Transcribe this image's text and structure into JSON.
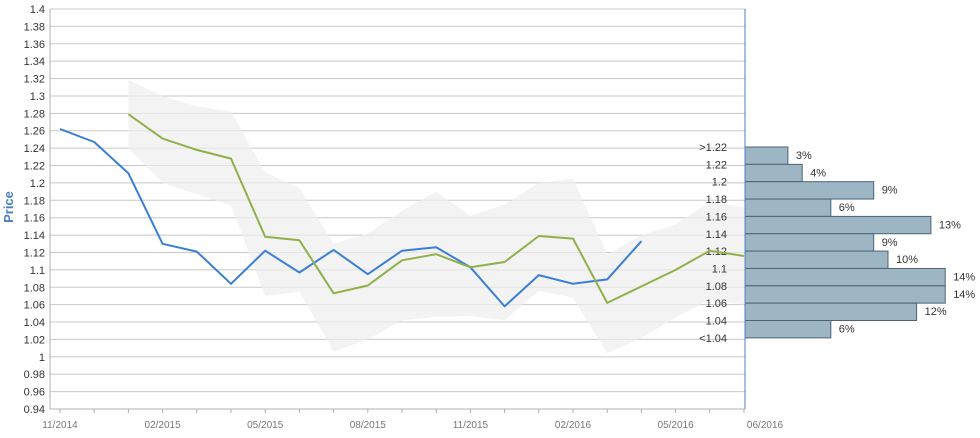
{
  "chart_data": {
    "type": "line",
    "ylabel": "Price",
    "ylim": [
      0.94,
      1.4
    ],
    "yticks": [
      "1.4",
      "1.38",
      "1.36",
      "1.34",
      "1.32",
      "1.3",
      "1.28",
      "1.26",
      "1.24",
      "1.22",
      "1.2",
      "1.18",
      "1.16",
      "1.14",
      "1.12",
      "1.1",
      "1.08",
      "1.06",
      "1.04",
      "1.02",
      "1",
      "0.98",
      "0.96",
      "0.94"
    ],
    "xticks": [
      "11/2014",
      "02/2015",
      "05/2015",
      "08/2015",
      "11/2015",
      "02/2016",
      "05/2016",
      "06/2016"
    ],
    "x_months": [
      "11/2014",
      "12/2014",
      "01/2015",
      "02/2015",
      "03/2015",
      "04/2015",
      "05/2015",
      "06/2015",
      "07/2015",
      "08/2015",
      "09/2015",
      "10/2015",
      "11/2015",
      "12/2015",
      "01/2016",
      "02/2016",
      "03/2016",
      "04/2016",
      "05/2016",
      "06/2016",
      "07/2016"
    ],
    "grid": true,
    "series": [
      {
        "color": "#3a7fd5",
        "values": [
          1.262,
          1.247,
          1.211,
          1.13,
          1.121,
          1.084,
          1.122,
          1.097,
          1.123,
          1.095,
          1.122,
          1.126,
          1.103,
          1.058,
          1.094,
          1.084,
          1.089,
          1.133,
          null,
          null,
          null
        ]
      },
      {
        "color": "#8fb04a",
        "values": [
          null,
          null,
          1.279,
          1.251,
          1.238,
          1.228,
          1.138,
          1.134,
          1.073,
          1.082,
          1.111,
          1.118,
          1.103,
          1.109,
          1.139,
          1.136,
          1.062,
          1.081,
          1.1,
          1.122,
          1.116
        ]
      }
    ],
    "band": {
      "color": "#eeeeee",
      "upper": [
        null,
        null,
        1.318,
        1.3,
        1.288,
        1.282,
        1.212,
        1.194,
        1.13,
        1.142,
        1.168,
        1.19,
        1.162,
        1.175,
        1.2,
        1.205,
        1.118,
        1.14,
        1.152,
        1.178,
        1.172
      ],
      "lower": [
        null,
        null,
        1.24,
        1.2,
        1.187,
        1.174,
        1.07,
        1.075,
        1.006,
        1.02,
        1.042,
        1.046,
        1.047,
        1.042,
        1.076,
        1.068,
        1.004,
        1.022,
        1.045,
        1.066,
        1.06
      ]
    },
    "histogram": {
      "color": "#9eb5c4",
      "bins": [
        {
          "label": ">1.22",
          "percent": 3,
          "text": "3%"
        },
        {
          "label": "1.22",
          "percent": 4,
          "text": "4%"
        },
        {
          "label": "1.2",
          "percent": 9,
          "text": "9%"
        },
        {
          "label": "1.18",
          "percent": 6,
          "text": "6%"
        },
        {
          "label": "1.16",
          "percent": 13,
          "text": "13%"
        },
        {
          "label": "1.14",
          "percent": 9,
          "text": "9%"
        },
        {
          "label": "1.12",
          "percent": 10,
          "text": "10%"
        },
        {
          "label": "1.1",
          "percent": 14,
          "text": "14%"
        },
        {
          "label": "1.08",
          "percent": 14,
          "text": "14%"
        },
        {
          "label": "1.06",
          "percent": 12,
          "text": "12%"
        },
        {
          "label": "1.04",
          "percent": 6,
          "text": "6%"
        },
        {
          "label": "<1.04",
          "percent": 0,
          "text": ""
        }
      ]
    }
  }
}
